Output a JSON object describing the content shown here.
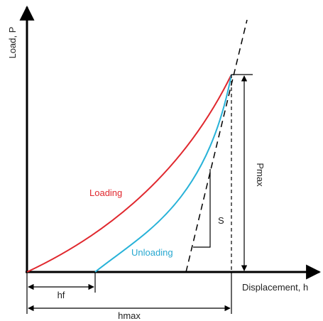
{
  "axes": {
    "y_label": "Load, P",
    "x_label": "Displacement, h"
  },
  "curves": {
    "loading": "Loading",
    "unloading": "Unloading"
  },
  "annotations": {
    "pmax": "Pmax",
    "stiffness": "S",
    "hf": "hf",
    "hmax": "hmax"
  }
}
